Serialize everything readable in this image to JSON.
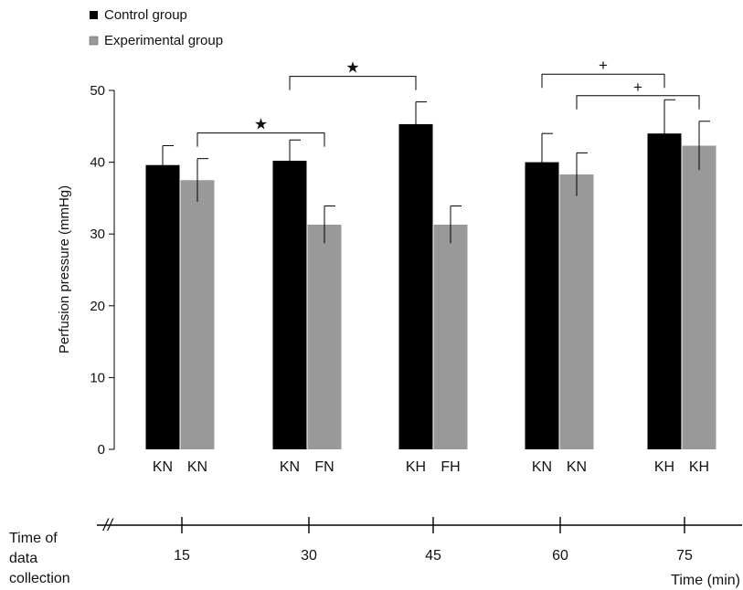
{
  "chart_data": {
    "type": "bar",
    "title": "",
    "xlabel": "",
    "ylabel": "Perfusion pressure (mmHg)",
    "ylim": [
      0,
      50
    ],
    "yticks": [
      0,
      10,
      20,
      30,
      40,
      50
    ],
    "grid": false,
    "legend_position": "top-left",
    "series": [
      {
        "name": "Control group",
        "color": "#000000",
        "values": [
          39.6,
          40.2,
          45.3,
          40.0,
          44.0
        ],
        "errors": [
          2.7,
          2.9,
          3.1,
          4.0,
          4.7
        ],
        "labels": [
          "KN",
          "KN",
          "KH",
          "KN",
          "KH"
        ]
      },
      {
        "name": "Experimental group",
        "color": "#999999",
        "values": [
          37.5,
          31.3,
          31.3,
          38.3,
          42.3
        ],
        "errors": [
          3.0,
          2.6,
          2.6,
          3.0,
          3.4
        ],
        "labels": [
          "KN",
          "FN",
          "FH",
          "KN",
          "KH"
        ]
      }
    ],
    "comparisons": [
      {
        "from_group": 0,
        "from_series": 1,
        "to_group": 1,
        "to_series": 1,
        "symbol": "★"
      },
      {
        "from_group": 1,
        "from_series": 0,
        "to_group": 2,
        "to_series": 0,
        "symbol": "★"
      },
      {
        "from_group": 3,
        "from_series": 0,
        "to_group": 4,
        "to_series": 0,
        "symbol": "+"
      },
      {
        "from_group": 3,
        "from_series": 1,
        "to_group": 4,
        "to_series": 1,
        "symbol": "+"
      }
    ],
    "timeline": {
      "label": "Time of data collection",
      "label_lines": [
        "Time of",
        "data",
        "collection"
      ],
      "ticks": [
        15,
        30,
        45,
        60,
        75
      ],
      "unit_label": "Time (min)",
      "break_symbol": "//"
    }
  }
}
